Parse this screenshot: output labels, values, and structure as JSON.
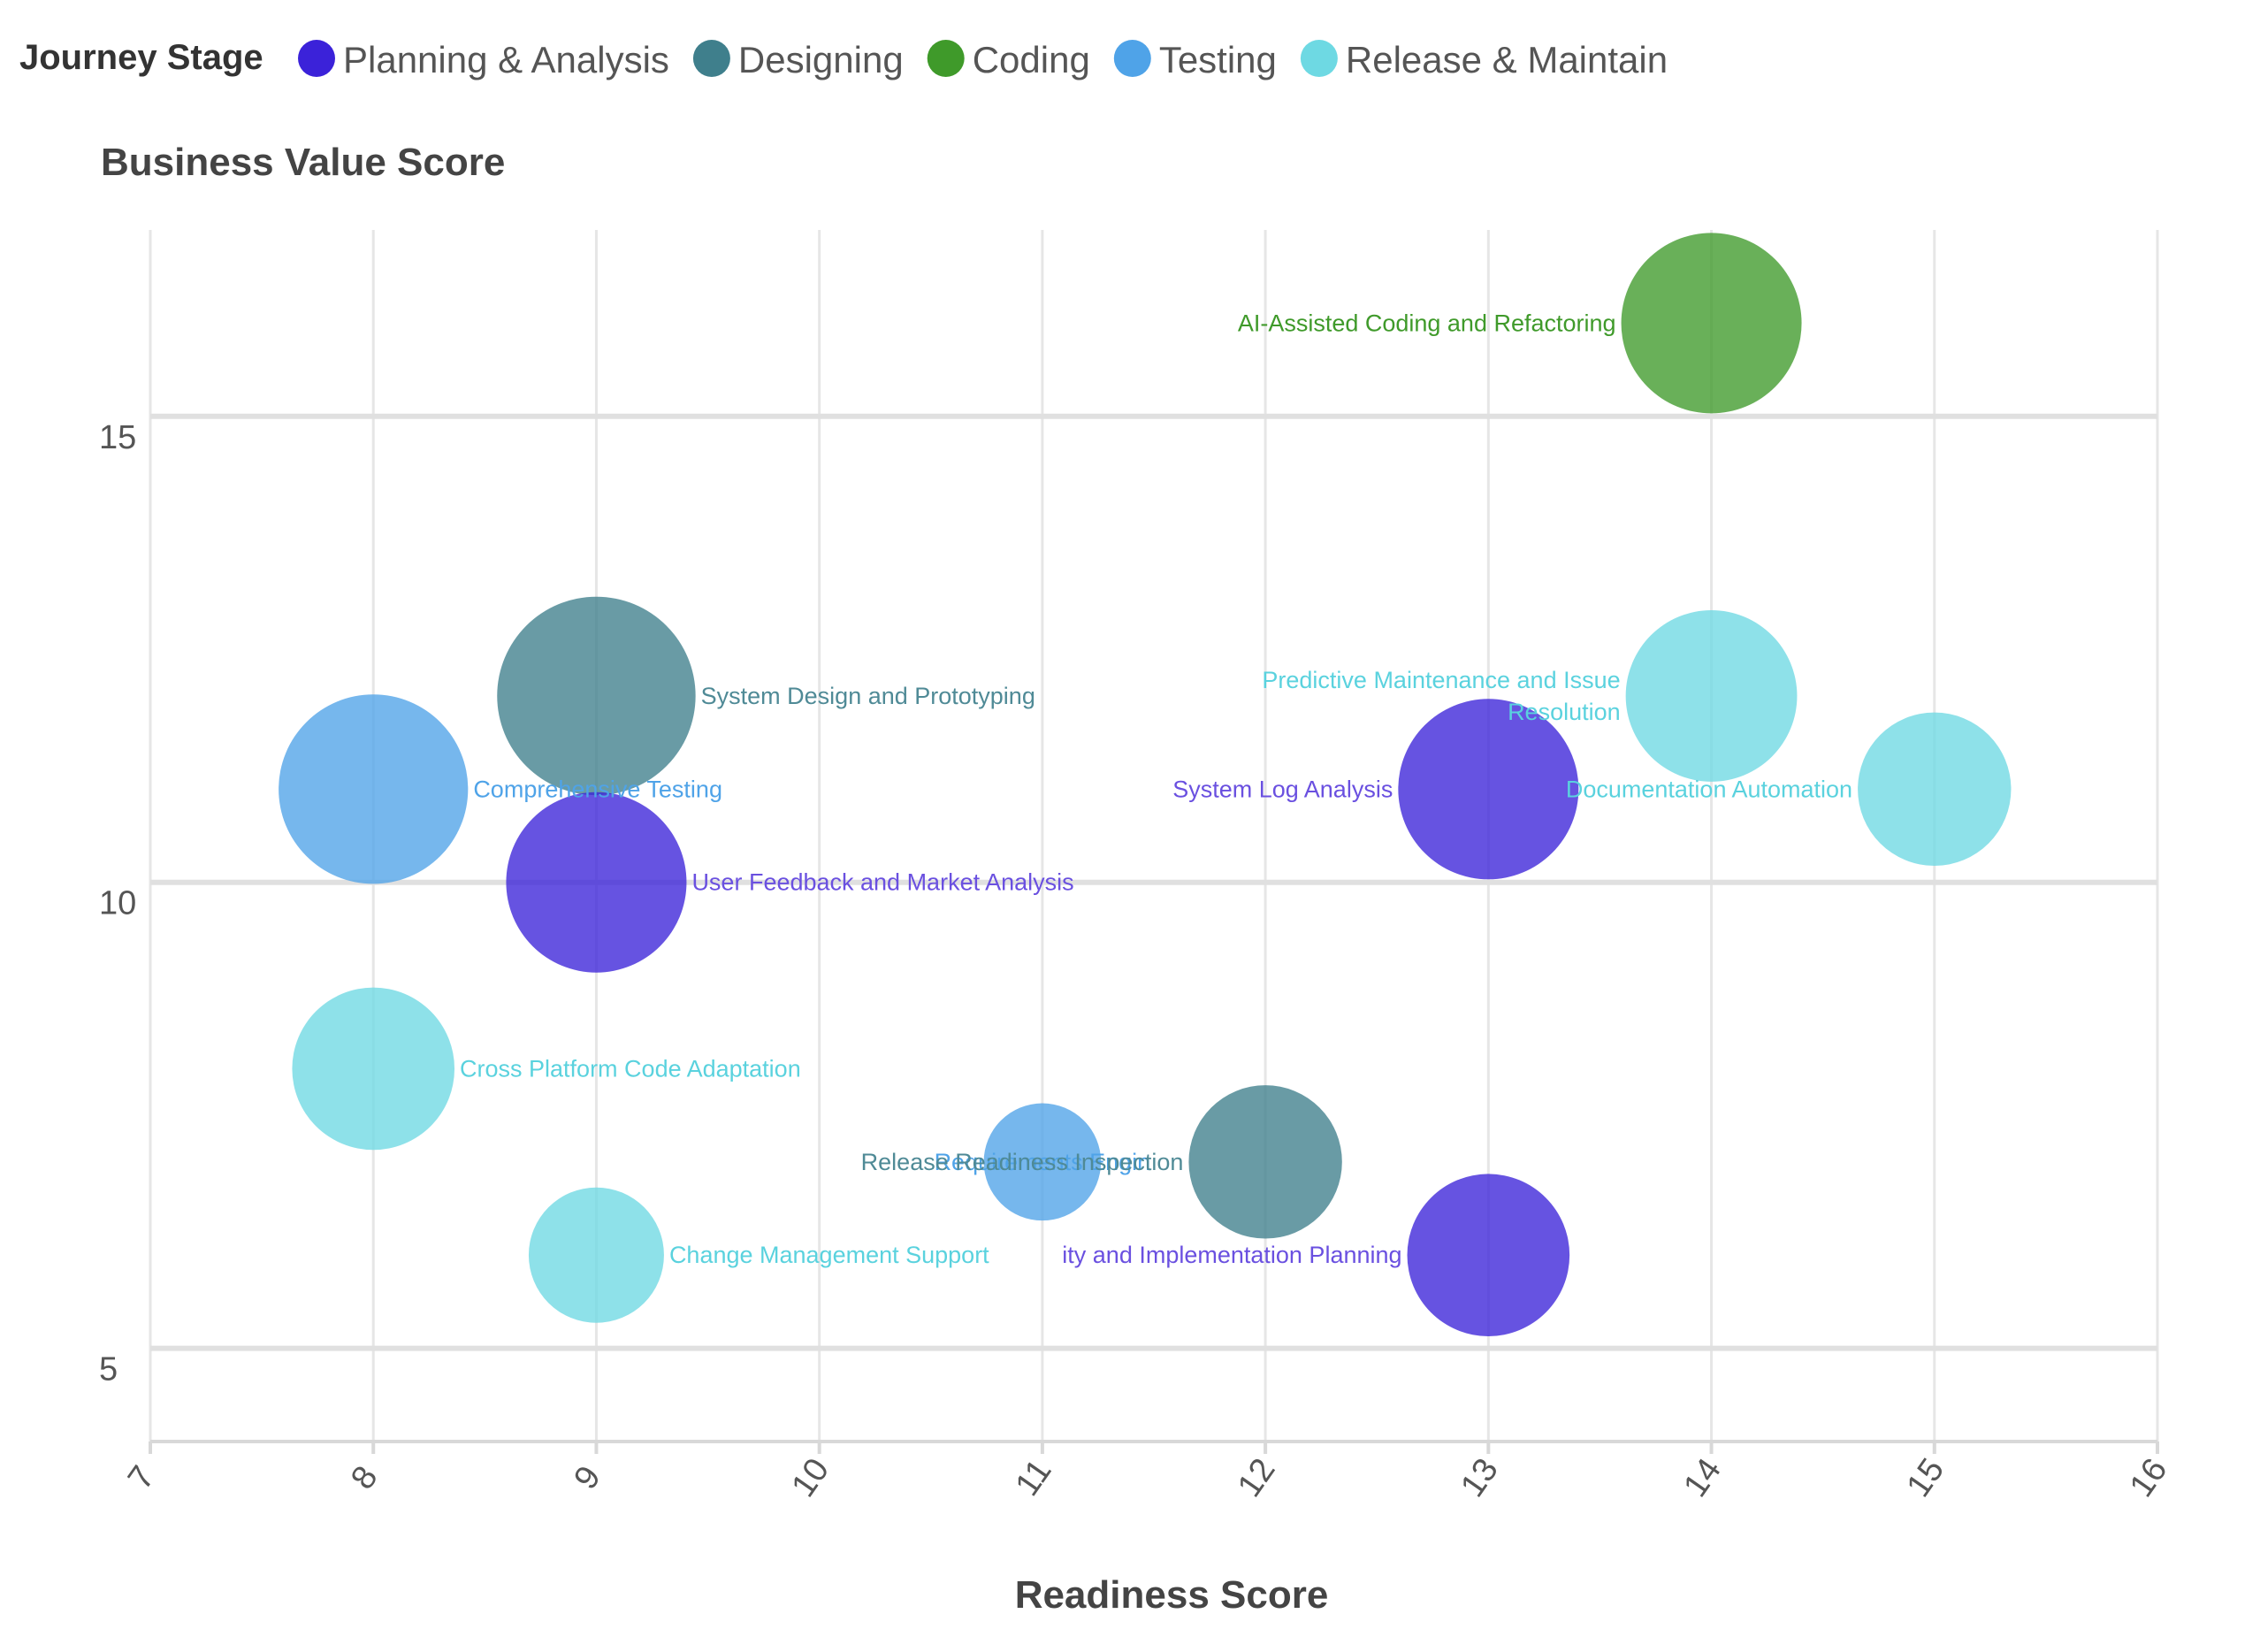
{
  "chart_data": {
    "type": "scatter",
    "subtype": "bubble",
    "legend_title": "Journey Stage",
    "legend_position": "top-left",
    "xlabel": "Readiness Score",
    "ylabel": "Business Value Score",
    "xlim": [
      7,
      16
    ],
    "ylim": [
      4,
      17
    ],
    "x_ticks": [
      "7",
      "8",
      "9",
      "10",
      "11",
      "12",
      "13",
      "14",
      "15",
      "16"
    ],
    "y_ticks": [
      "5",
      "10",
      "15"
    ],
    "grid": true,
    "stages": [
      {
        "name": "Planning & Analysis",
        "color": "#3b22d9",
        "label_color": "#6a50e0"
      },
      {
        "name": "Designing",
        "color": "#3f7f8c",
        "label_color": "#4f8a96"
      },
      {
        "name": "Coding",
        "color": "#3f9a2a",
        "label_color": "#3f9a2a"
      },
      {
        "name": "Testing",
        "color": "#4fa3e8",
        "label_color": "#4fa3e8"
      },
      {
        "name": "Release & Maintain",
        "color": "#6ed9e3",
        "label_color": "#5ad2de"
      }
    ],
    "points": [
      {
        "label": "AI-Assisted Coding and Refactoring",
        "stage": "Coding",
        "x": 14,
        "y": 16,
        "size": 10,
        "label_lines": [
          "AI-Assisted Coding and Refactoring"
        ],
        "label_side": "left"
      },
      {
        "label": "System Design and Prototyping",
        "stage": "Designing",
        "x": 9,
        "y": 12,
        "size": 11,
        "label_lines": [
          "System Design and Prototyping"
        ],
        "label_side": "right"
      },
      {
        "label": "Comprehensive Testing",
        "stage": "Testing",
        "x": 8,
        "y": 11,
        "size": 10.5,
        "label_lines": [
          "Comprehensive Testing"
        ],
        "label_side": "right"
      },
      {
        "label": "User Feedback and Market Analysis",
        "stage": "Planning & Analysis",
        "x": 9,
        "y": 10,
        "size": 10,
        "label_lines": [
          "User Feedback and Market Analysis"
        ],
        "label_side": "right"
      },
      {
        "label": "Predictive Maintenance and Issue Resolution",
        "stage": "Release & Maintain",
        "x": 14,
        "y": 12,
        "size": 9.5,
        "label_lines": [
          "Predictive Maintenance and Issue",
          "Resolution"
        ],
        "label_side": "left"
      },
      {
        "label": "System Log Analysis",
        "stage": "Planning & Analysis",
        "x": 13,
        "y": 11,
        "size": 10,
        "label_lines": [
          "System Log Analysis"
        ],
        "label_side": "left"
      },
      {
        "label": "Documentation Automation",
        "stage": "Release & Maintain",
        "x": 15,
        "y": 11,
        "size": 8.5,
        "label_lines": [
          "Documentation Automation"
        ],
        "label_side": "left"
      },
      {
        "label": "Cross Platform Code Adaptation",
        "stage": "Release & Maintain",
        "x": 8,
        "y": 8,
        "size": 9,
        "label_lines": [
          "Cross Platform Code Adaptation"
        ],
        "label_side": "right"
      },
      {
        "label": "Requirements Engin",
        "stage": "Testing",
        "x": 11,
        "y": 7,
        "size": 6.5,
        "label_lines": [
          "Requirements Engin"
        ],
        "label_side": "center"
      },
      {
        "label": "Release Readiness Inspection",
        "stage": "Designing",
        "x": 12,
        "y": 7,
        "size": 8.5,
        "label_lines": [
          "Release Readiness Inspection"
        ],
        "label_side": "left"
      },
      {
        "label": "Change Management Support",
        "stage": "Release & Maintain",
        "x": 9,
        "y": 6,
        "size": 7.5,
        "label_lines": [
          "Change Management Support"
        ],
        "label_side": "right"
      },
      {
        "label": "ity and Implementation Planning",
        "stage": "Planning & Analysis",
        "x": 13,
        "y": 6,
        "size": 9,
        "label_lines": [
          "ity and Implementation Planning"
        ],
        "label_side": "left"
      }
    ]
  }
}
